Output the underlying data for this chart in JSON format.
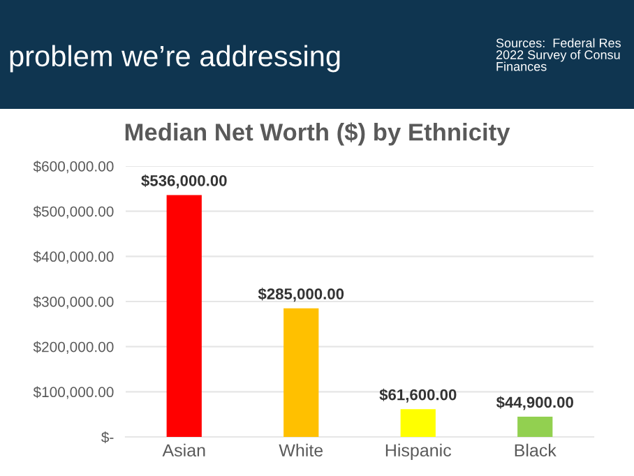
{
  "chart_data": {
    "type": "bar",
    "title": "Median Net Worth ($) by Ethnicity",
    "categories": [
      "Asian",
      "White",
      "Hispanic",
      "Black"
    ],
    "values": [
      536000,
      285000,
      61600,
      44900
    ],
    "colors": [
      "#ff0000",
      "#ffc000",
      "#ffff00",
      "#92d050"
    ],
    "value_labels": [
      "$536,000.00",
      "$285,000.00",
      "$61,600.00",
      "$44,900.00"
    ],
    "ylim": [
      0,
      600000
    ],
    "yticks": [
      {
        "value": 0,
        "label": "$-"
      },
      {
        "value": 100000,
        "label": "$100,000.00"
      },
      {
        "value": 200000,
        "label": "$200,000.00"
      },
      {
        "value": 300000,
        "label": "$300,000.00"
      },
      {
        "value": 400000,
        "label": "$400,000.00"
      },
      {
        "value": 500000,
        "label": "$500,000.00"
      },
      {
        "value": 600000,
        "label": "$600,000.00"
      }
    ],
    "grid": "y",
    "legend": false,
    "annotations": [
      "problem we’re addressing",
      "Sources:  Federal Res\n2022 Survey of Consu\nFinances"
    ]
  }
}
